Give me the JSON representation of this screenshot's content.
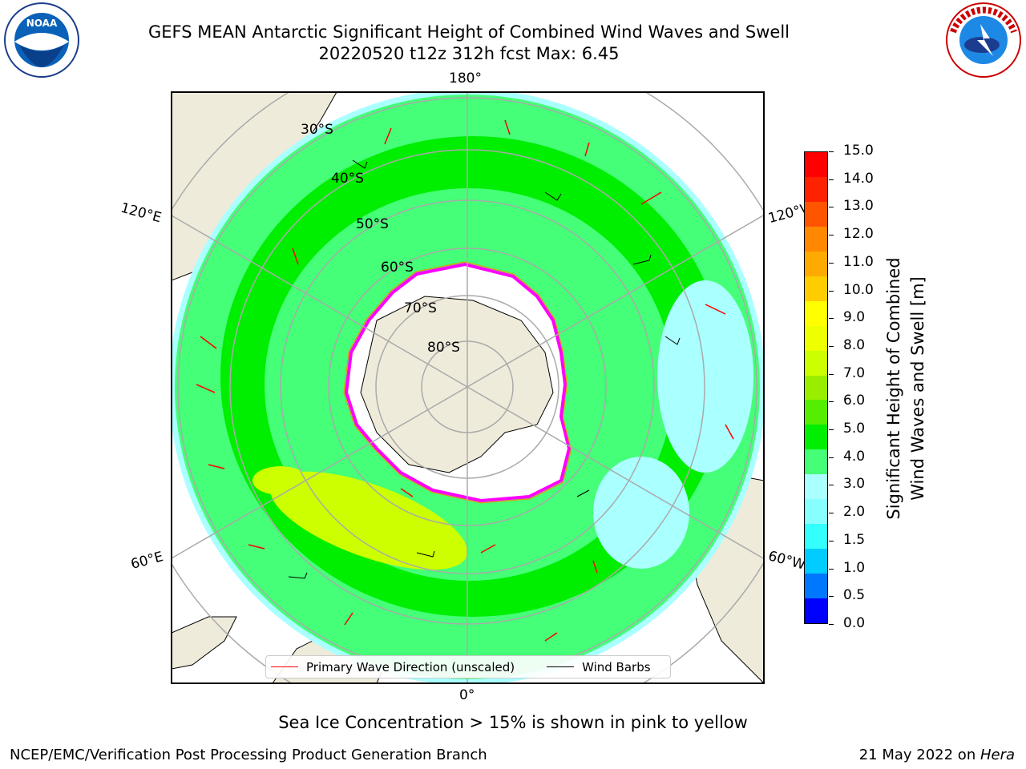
{
  "header": {
    "title_line1": "GEFS MEAN Antarctic Significant Height of Combined Wind Waves and Swell",
    "title_line2": "20220520 t12z 312h fcst   Max: 6.45"
  },
  "map": {
    "lon_labels": [
      "180°",
      "120°E",
      "120°W",
      "60°E",
      "60°W",
      "0°"
    ],
    "lat_labels": [
      "30°S",
      "40°S",
      "50°S",
      "60°S",
      "70°S",
      "80°S"
    ],
    "legend": {
      "wave_label": "Primary Wave Direction (unscaled)",
      "barb_label": "Wind Barbs",
      "wave_color": "#ff0000",
      "barb_color": "#000000"
    },
    "colors": {
      "land": "#efebdb",
      "ice": "#ffffff",
      "ice_edge": [
        "#ff00ff",
        "#ff8800",
        "#ffff00"
      ]
    }
  },
  "colorbar": {
    "label": "Significant Height of Combined\nWind Waves and Swell [m]",
    "ticks": [
      "15.0",
      "14.0",
      "13.0",
      "12.0",
      "11.0",
      "10.0",
      "9.0",
      "8.0",
      "7.0",
      "6.0",
      "5.0",
      "4.0",
      "3.0",
      "2.0",
      "1.5",
      "1.0",
      "0.5",
      "0.0"
    ],
    "colors_bottom_to_top": [
      "#0000ff",
      "#0077ff",
      "#00ccff",
      "#33ffff",
      "#88ffff",
      "#aaffff",
      "#44ff77",
      "#00ee00",
      "#55ee00",
      "#99ee00",
      "#ccff00",
      "#eeff00",
      "#ffff00",
      "#ffcc00",
      "#ffaa00",
      "#ff8800",
      "#ff5500",
      "#ff2200",
      "#ff0000"
    ]
  },
  "note": "Sea Ice Concentration > 15% is shown in pink to yellow",
  "footer": {
    "left": "NCEP/EMC/Verification Post Processing Product Generation Branch",
    "right_date": "21 May 2022 on ",
    "right_host": "Hera"
  },
  "chart_data": {
    "type": "heatmap",
    "title": "GEFS MEAN Antarctic Significant Height of Combined Wind Waves and Swell",
    "subtitle": "20220520 t12z 312h fcst   Max: 6.45",
    "variable": "Significant Height of Combined Wind Waves and Swell [m]",
    "max_value": 6.45,
    "colorbar_range": [
      0,
      15
    ],
    "projection": "South Polar Stereographic",
    "grid": true
  }
}
